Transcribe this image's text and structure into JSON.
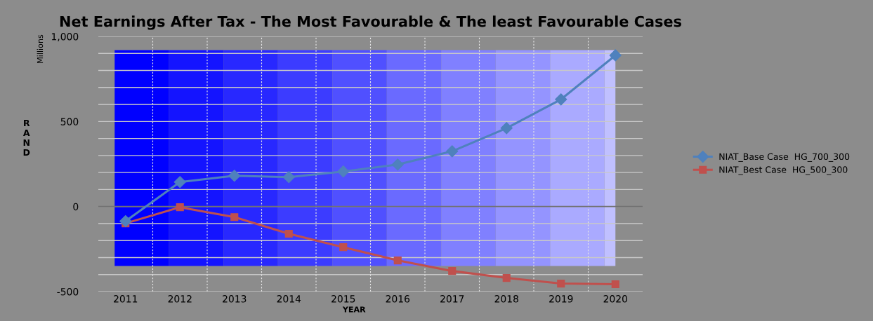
{
  "chart_data": {
    "type": "line",
    "title": "Net Earnings After Tax - The Most Favourable & The least Favourable Cases",
    "xlabel": "YEAR",
    "ylabel": "RAND",
    "annotations": [
      "Millions"
    ],
    "categories": [
      "2011",
      "2012",
      "2013",
      "2014",
      "2015",
      "2016",
      "2017",
      "2018",
      "2019",
      "2020"
    ],
    "series": [
      {
        "name": "NIAT_Base Case  HG_700_300",
        "color": "#4f81bd",
        "marker": "diamond",
        "values": [
          -86,
          144,
          181,
          173,
          206,
          247,
          325,
          461,
          630,
          889
        ]
      },
      {
        "name": "NIAT_Best Case  HG_500_300",
        "color": "#c0504d",
        "marker": "square",
        "values": [
          -99,
          -4,
          -62,
          -160,
          -239,
          -317,
          -379,
          -420,
          -453,
          -457
        ]
      }
    ],
    "ylim": [
      -500,
      1000
    ],
    "yticks": [
      {
        "value": -500,
        "label": "-500"
      },
      {
        "value": -400,
        "label": null
      },
      {
        "value": -300,
        "label": null
      },
      {
        "value": -200,
        "label": null
      },
      {
        "value": -100,
        "label": null
      },
      0,
      {
        "value": 100,
        "label": null
      },
      {
        "value": 200,
        "label": null
      },
      {
        "value": 300,
        "label": null
      },
      {
        "value": 400,
        "label": null
      },
      500,
      {
        "value": 600,
        "label": null
      },
      {
        "value": 700,
        "label": null
      },
      {
        "value": 800,
        "label": null
      },
      {
        "value": 900,
        "label": null
      },
      {
        "value": 1000,
        "label": "1,000"
      }
    ],
    "grid": true,
    "legend": "right",
    "line_style": "solid"
  }
}
